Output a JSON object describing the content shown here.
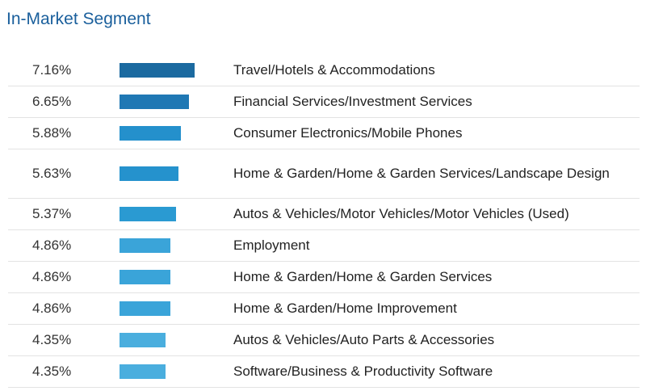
{
  "chart_data": {
    "type": "bar",
    "title": "In-Market Segment",
    "unit": "%",
    "categories": [
      "Travel/Hotels & Accommodations",
      "Financial Services/Investment Services",
      "Consumer Electronics/Mobile Phones",
      "Home & Garden/Home & Garden Services/Landscape Design",
      "Autos & Vehicles/Motor Vehicles/Motor Vehicles (Used)",
      "Employment",
      "Home & Garden/Home & Garden Services",
      "Home & Garden/Home Improvement",
      "Autos & Vehicles/Auto Parts & Accessories",
      "Software/Business & Productivity Software"
    ],
    "values": [
      7.16,
      6.65,
      5.88,
      5.63,
      5.37,
      4.86,
      4.86,
      4.86,
      4.35,
      4.35
    ],
    "value_labels": [
      "7.16%",
      "6.65%",
      "5.88%",
      "5.63%",
      "5.37%",
      "4.86%",
      "4.86%",
      "4.86%",
      "4.35%",
      "4.35%"
    ],
    "bar_colors": [
      "#1b6aa0",
      "#1f78b4",
      "#2490cc",
      "#2592cd",
      "#2a9ad2",
      "#3aa4d9",
      "#3aa4d9",
      "#3aa4d9",
      "#4aaede",
      "#4aaede"
    ],
    "xlim": [
      0,
      7.8
    ],
    "grid": false,
    "legend": "none"
  }
}
